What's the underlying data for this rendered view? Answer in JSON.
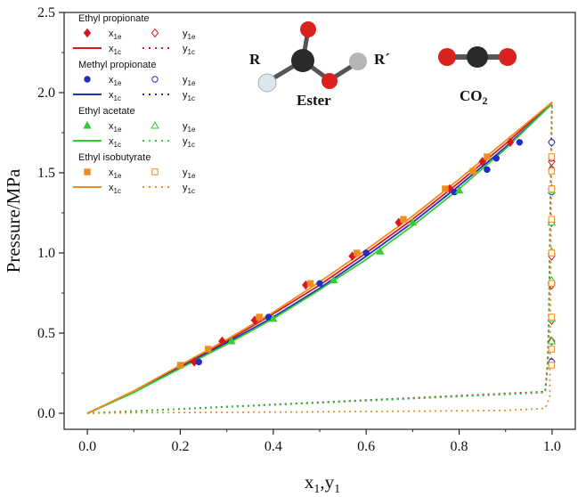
{
  "chart_data": {
    "type": "scatter",
    "xlabel_main": "x",
    "xlabel_sub1": "1",
    "xlabel_sep": ",y",
    "xlabel_sub2": "1",
    "ylabel": "Pressure/MPa",
    "xlim": [
      -0.05,
      1.05
    ],
    "ylim": [
      -0.1,
      2.5
    ],
    "xticks": [
      "0.0",
      "0.2",
      "0.4",
      "0.6",
      "0.8",
      "1.0"
    ],
    "yticks": [
      "0.0",
      "0.5",
      "1.0",
      "1.5",
      "2.0",
      "2.5"
    ],
    "grid": false,
    "legend_placement": "top-left",
    "legend": {
      "groups": [
        {
          "name": "Ethyl propionate",
          "color": "#d7191c",
          "marker": "diamond"
        },
        {
          "name": "Methyl propionate",
          "color": "#1f2fbf",
          "marker": "circle"
        },
        {
          "name": "Ethyl acetate",
          "color": "#33cc33",
          "marker": "triangle"
        },
        {
          "name": "Ethyl isobutyrate",
          "color": "#f28c1e",
          "marker": "square"
        }
      ],
      "x_exp_main": "x",
      "x_exp_sub": "1e",
      "y_exp_main": "y",
      "y_exp_sub": "1e",
      "x_calc_main": "x",
      "x_calc_sub": "1c",
      "y_calc_main": "y",
      "y_calc_sub": "1c"
    },
    "molecules": {
      "ester_label": "Ester",
      "r_label": "R",
      "r_prime_label": "R´",
      "co2_main": "CO",
      "co2_sub": "2"
    },
    "series": [
      {
        "name": "Ethyl propionate",
        "color": "#d7191c",
        "marker": "diamond",
        "x_exp": [
          0.23,
          0.29,
          0.36,
          0.47,
          0.57,
          0.67,
          0.78,
          0.85,
          0.91
        ],
        "y_exp_x": [
          0.32,
          0.45,
          0.58,
          0.8,
          0.98,
          1.19,
          1.4,
          1.57,
          1.69
        ],
        "y_exp": [
          0.999,
          0.999,
          0.999,
          0.999,
          0.999,
          0.999,
          0.999,
          0.999,
          0.999
        ],
        "y_exp_y": [
          0.32,
          0.45,
          0.58,
          0.8,
          0.98,
          1.19,
          1.4,
          1.57,
          1.69
        ],
        "x_calc": [
          0.0,
          0.1,
          0.2,
          0.3,
          0.4,
          0.5,
          0.6,
          0.7,
          0.8,
          0.9,
          1.0
        ],
        "p_calc_x": [
          0.0,
          0.135,
          0.295,
          0.45,
          0.62,
          0.8,
          1.0,
          1.21,
          1.44,
          1.68,
          1.94
        ],
        "y_calc": [
          0.0,
          0.985,
          0.99,
          0.992,
          0.993,
          0.994,
          0.995,
          0.996,
          0.997,
          0.998,
          1.0
        ],
        "p_calc_y": [
          0.0,
          0.135,
          0.295,
          0.45,
          0.62,
          0.8,
          1.0,
          1.21,
          1.44,
          1.68,
          1.94
        ]
      },
      {
        "name": "Methyl propionate",
        "color": "#1f2fbf",
        "marker": "circle",
        "x_exp": [
          0.24,
          0.39,
          0.5,
          0.6,
          0.79,
          0.86,
          0.88,
          0.93
        ],
        "y_exp_x": [
          0.32,
          0.6,
          0.81,
          1.0,
          1.38,
          1.52,
          1.59,
          1.69
        ],
        "y_exp": [
          0.999,
          0.999,
          0.999,
          0.999,
          0.999,
          0.999,
          0.999,
          0.999
        ],
        "y_exp_y": [
          0.32,
          0.6,
          0.81,
          1.0,
          1.38,
          1.52,
          1.59,
          1.69
        ],
        "x_calc": [
          0.0,
          0.1,
          0.2,
          0.3,
          0.4,
          0.5,
          0.6,
          0.7,
          0.8,
          0.9,
          1.0
        ],
        "p_calc_x": [
          0.0,
          0.13,
          0.285,
          0.44,
          0.6,
          0.78,
          0.98,
          1.19,
          1.42,
          1.66,
          1.93
        ],
        "y_calc": [
          0.0,
          0.985,
          0.99,
          0.992,
          0.993,
          0.994,
          0.995,
          0.996,
          0.997,
          0.998,
          1.0
        ],
        "p_calc_y": [
          0.0,
          0.13,
          0.285,
          0.44,
          0.6,
          0.78,
          0.98,
          1.19,
          1.42,
          1.66,
          1.93
        ]
      },
      {
        "name": "Ethyl acetate",
        "color": "#33cc33",
        "marker": "triangle",
        "x_exp": [
          0.31,
          0.4,
          0.53,
          0.63,
          0.7,
          0.8
        ],
        "y_exp_x": [
          0.45,
          0.59,
          0.83,
          1.01,
          1.19,
          1.39
        ],
        "y_exp": [
          0.999,
          0.999,
          0.999,
          0.999,
          0.999,
          0.999
        ],
        "y_exp_y": [
          0.45,
          0.59,
          0.83,
          1.01,
          1.19,
          1.39
        ],
        "x_calc": [
          0.0,
          0.1,
          0.2,
          0.3,
          0.4,
          0.5,
          0.6,
          0.7,
          0.8,
          0.9,
          1.0
        ],
        "p_calc_x": [
          0.0,
          0.13,
          0.28,
          0.43,
          0.59,
          0.77,
          0.96,
          1.17,
          1.4,
          1.65,
          1.93
        ],
        "y_calc": [
          0.0,
          0.985,
          0.99,
          0.992,
          0.993,
          0.994,
          0.995,
          0.996,
          0.997,
          0.998,
          1.0
        ],
        "p_calc_y": [
          0.0,
          0.13,
          0.28,
          0.43,
          0.59,
          0.77,
          0.96,
          1.17,
          1.4,
          1.65,
          1.93
        ]
      },
      {
        "name": "Ethyl isobutyrate",
        "color": "#f28c1e",
        "marker": "square",
        "x_exp": [
          0.2,
          0.26,
          0.37,
          0.48,
          0.58,
          0.68,
          0.77,
          0.83,
          0.86
        ],
        "y_exp_x": [
          0.3,
          0.4,
          0.6,
          0.81,
          1.0,
          1.21,
          1.4,
          1.51,
          1.6
        ],
        "y_exp": [
          0.999,
          0.999,
          0.999,
          0.999,
          0.999,
          0.999,
          0.999,
          0.999,
          0.999
        ],
        "y_exp_y": [
          0.3,
          0.4,
          0.6,
          0.81,
          1.0,
          1.21,
          1.4,
          1.51,
          1.6
        ],
        "x_calc": [
          0.0,
          0.1,
          0.2,
          0.3,
          0.4,
          0.5,
          0.6,
          0.7,
          0.8,
          0.9,
          1.0
        ],
        "p_calc_x": [
          0.0,
          0.14,
          0.3,
          0.46,
          0.63,
          0.82,
          1.02,
          1.23,
          1.46,
          1.7,
          1.94
        ],
        "y_calc": [
          0.0,
          0.05,
          0.15,
          0.3,
          0.45,
          0.6,
          0.75,
          0.9,
          0.985,
          0.995,
          1.0
        ],
        "p_calc_y": [
          0.0,
          0.002,
          0.004,
          0.006,
          0.008,
          0.011,
          0.014,
          0.018,
          0.03,
          0.1,
          1.94
        ]
      }
    ]
  }
}
